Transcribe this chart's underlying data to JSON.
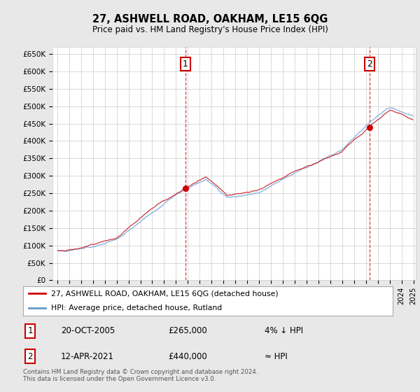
{
  "title": "27, ASHWELL ROAD, OAKHAM, LE15 6QG",
  "subtitle": "Price paid vs. HM Land Registry's House Price Index (HPI)",
  "ytick_labels": [
    "£0",
    "£50K",
    "£100K",
    "£150K",
    "£200K",
    "£250K",
    "£300K",
    "£350K",
    "£400K",
    "£450K",
    "£500K",
    "£550K",
    "£600K",
    "£650K"
  ],
  "ytick_vals": [
    0,
    50000,
    100000,
    150000,
    200000,
    250000,
    300000,
    350000,
    400000,
    450000,
    500000,
    550000,
    600000,
    650000
  ],
  "legend1_label": "27, ASHWELL ROAD, OAKHAM, LE15 6QG (detached house)",
  "legend2_label": "HPI: Average price, detached house, Rutland",
  "line_color_red": "#cc0000",
  "line_color_blue": "#6699cc",
  "fill_color_blue": "#ddeeff",
  "annotation1_label": "1",
  "annotation2_label": "2",
  "sale1_year": 2005,
  "sale1_month": 10,
  "sale1_price": 265000,
  "sale2_year": 2021,
  "sale2_month": 4,
  "sale2_price": 440000,
  "footnote": "Contains HM Land Registry data © Crown copyright and database right 2024.\nThis data is licensed under the Open Government Licence v3.0.",
  "table": [
    [
      "1",
      "20-OCT-2005",
      "£265,000",
      "4% ↓ HPI"
    ],
    [
      "2",
      "12-APR-2021",
      "£440,000",
      "≈ HPI"
    ]
  ],
  "background_color": "#e8e8e8",
  "plot_bg": "#ffffff",
  "grid_color": "#cccccc"
}
